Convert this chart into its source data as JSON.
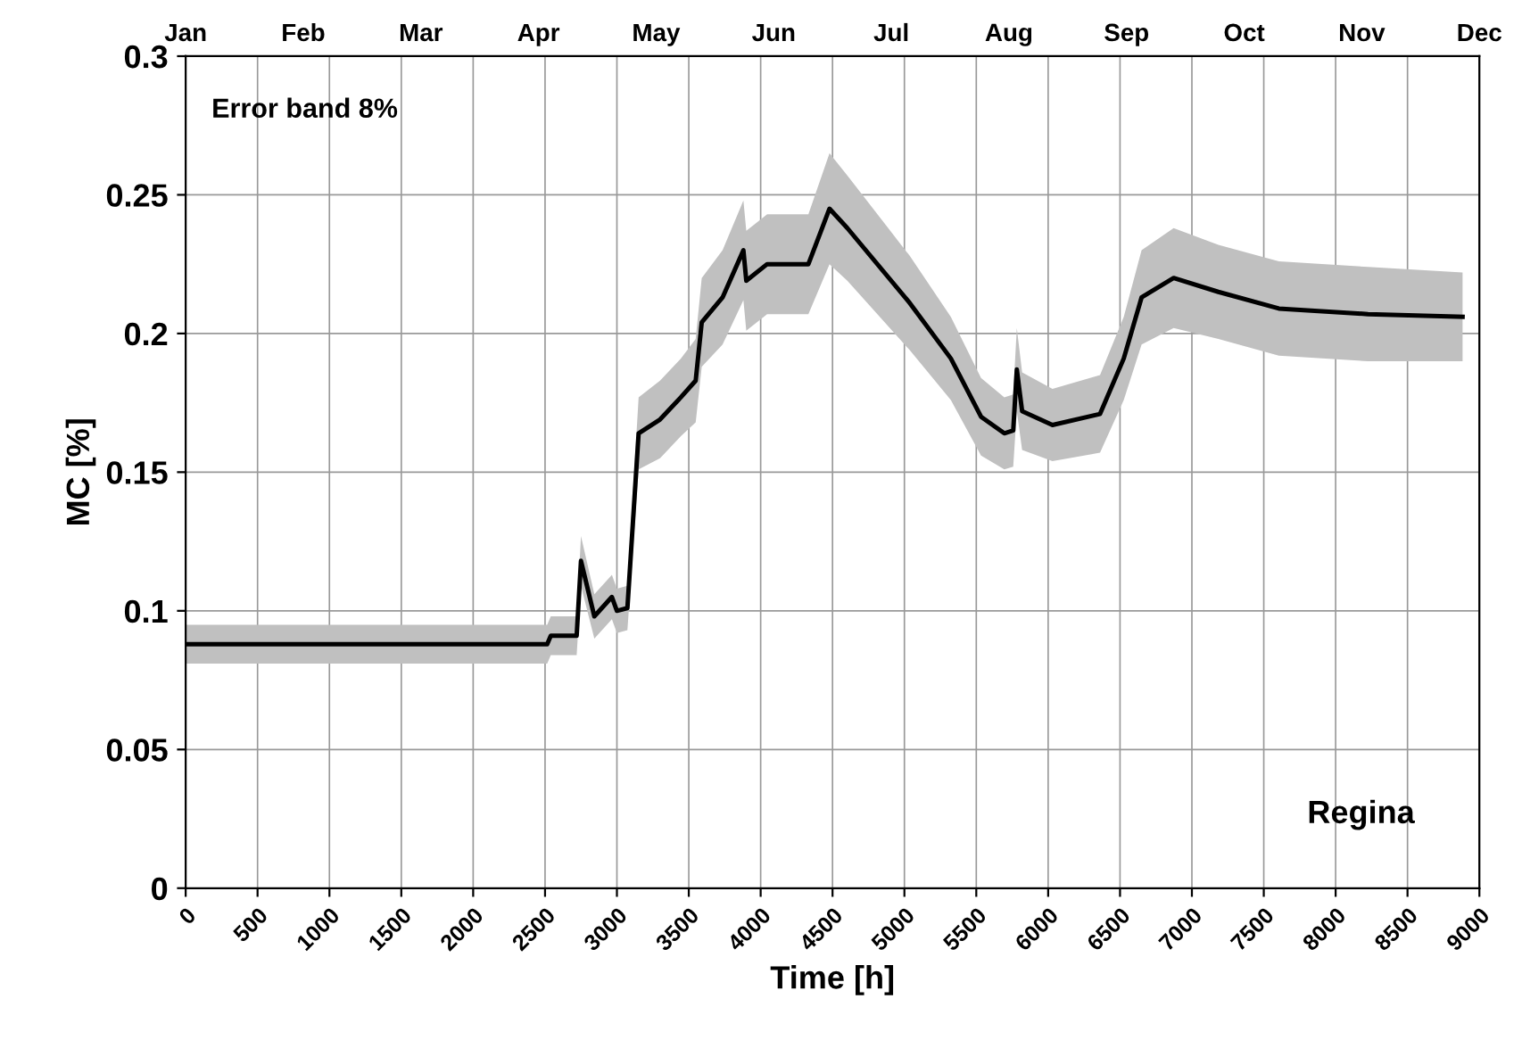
{
  "chart_data": {
    "type": "line",
    "xlabel": "Time [h]",
    "ylabel": "MC [%]",
    "annotations": [
      "Error band 8%",
      "Regina",
      "Jan",
      "Feb",
      "Mar",
      "Apr",
      "May",
      "Jun",
      "Jul",
      "Aug",
      "Sep",
      "Oct",
      "Nov",
      "Dec"
    ],
    "xlim": [
      0,
      9000
    ],
    "xticks": [
      0,
      500,
      1000,
      1500,
      2000,
      2500,
      3000,
      3500,
      4000,
      4500,
      5000,
      5500,
      6000,
      6500,
      7000,
      7500,
      8000,
      8500,
      9000
    ],
    "ylim": [
      0,
      0.3
    ],
    "yticks": [
      0,
      0.05,
      0.1,
      0.15,
      0.2,
      0.25,
      0.3
    ],
    "grid": true,
    "marker": "none",
    "line_style": "solid",
    "series": [
      {
        "color": "#000000",
        "x": [
          0,
          1000,
          2000,
          2515,
          2540,
          2720,
          2750,
          2843,
          2965,
          3000,
          3073,
          3151,
          3300,
          3445,
          3548,
          3590,
          3735,
          3880,
          3900,
          4045,
          4332,
          4479,
          4603,
          5037,
          5323,
          5533,
          5695,
          5757,
          5782,
          5819,
          6030,
          6361,
          6526,
          6650,
          6873,
          7184,
          7605,
          8225,
          8883
        ],
        "values": [
          0.088,
          0.088,
          0.088,
          0.088,
          0.091,
          0.091,
          0.118,
          0.098,
          0.105,
          0.1,
          0.101,
          0.164,
          0.169,
          0.177,
          0.183,
          0.204,
          0.213,
          0.23,
          0.219,
          0.225,
          0.225,
          0.245,
          0.238,
          0.211,
          0.191,
          0.17,
          0.164,
          0.165,
          0.187,
          0.172,
          0.167,
          0.171,
          0.191,
          0.213,
          0.22,
          0.215,
          0.209,
          0.207,
          0.206
        ],
        "lower": [
          0.081,
          0.081,
          0.081,
          0.081,
          0.084,
          0.084,
          0.109,
          0.09,
          0.097,
          0.092,
          0.093,
          0.151,
          0.155,
          0.163,
          0.168,
          0.188,
          0.196,
          0.212,
          0.201,
          0.207,
          0.207,
          0.225,
          0.219,
          0.194,
          0.176,
          0.156,
          0.151,
          0.152,
          0.172,
          0.158,
          0.154,
          0.157,
          0.176,
          0.196,
          0.202,
          0.198,
          0.192,
          0.19,
          0.19
        ],
        "upper": [
          0.095,
          0.095,
          0.095,
          0.095,
          0.098,
          0.098,
          0.127,
          0.106,
          0.113,
          0.108,
          0.109,
          0.177,
          0.183,
          0.191,
          0.198,
          0.22,
          0.23,
          0.248,
          0.237,
          0.243,
          0.243,
          0.265,
          0.257,
          0.228,
          0.206,
          0.184,
          0.177,
          0.178,
          0.202,
          0.186,
          0.18,
          0.185,
          0.206,
          0.23,
          0.238,
          0.232,
          0.226,
          0.224,
          0.222
        ]
      }
    ]
  }
}
